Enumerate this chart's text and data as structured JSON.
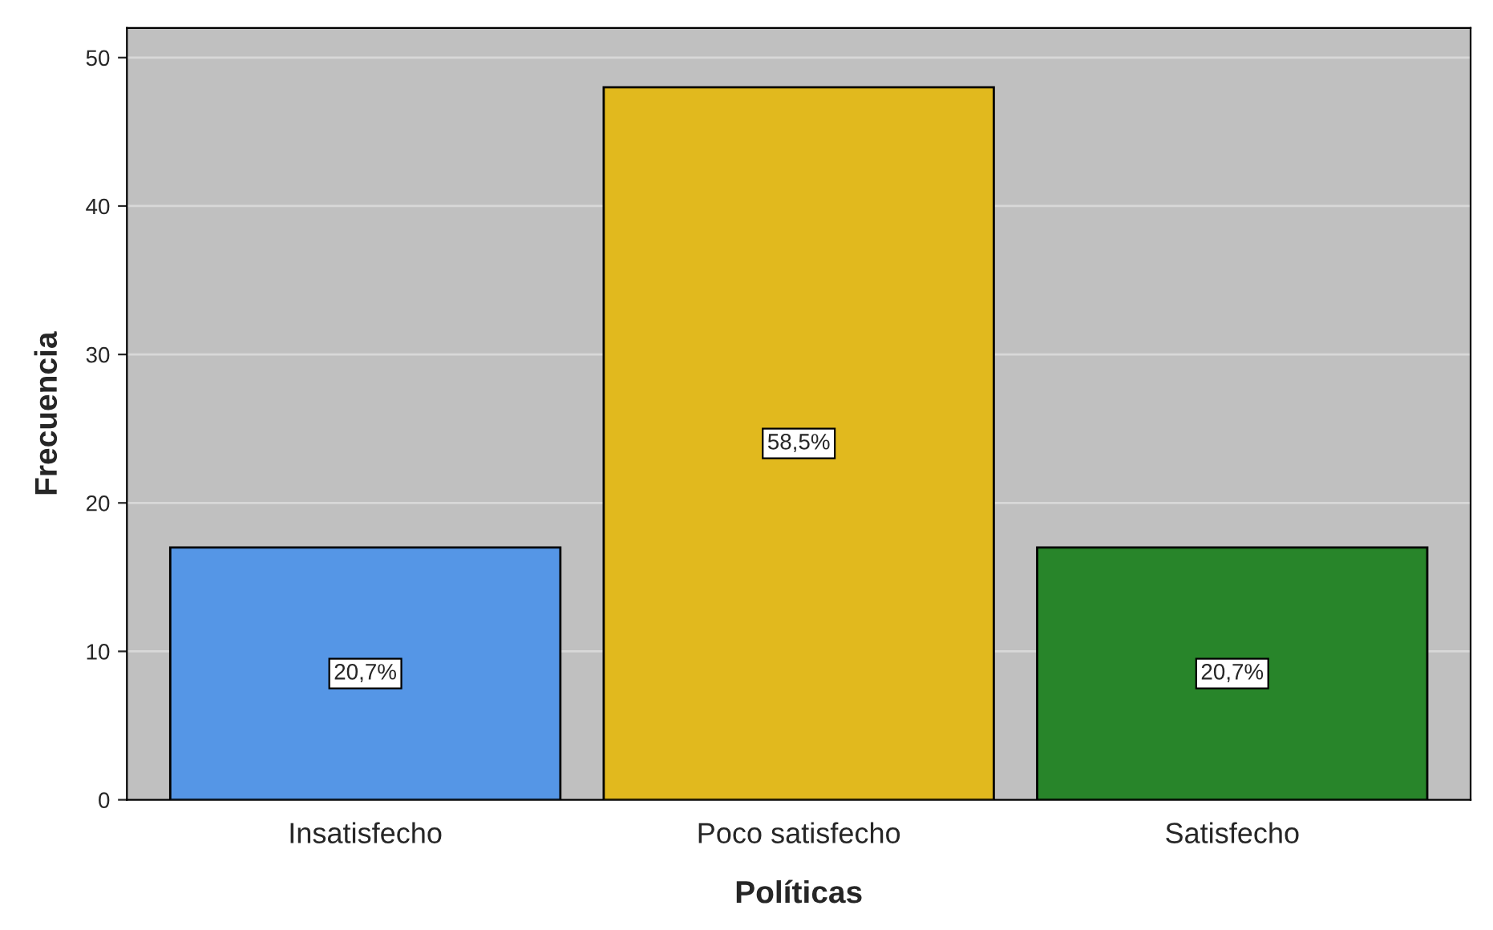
{
  "chart_data": {
    "type": "bar",
    "xlabel": "Políticas",
    "ylabel": "Frecuencia",
    "categories": [
      "Insatisfecho",
      "Poco satisfecho",
      "Satisfecho"
    ],
    "values": [
      17,
      48,
      17
    ],
    "colors": [
      "#5596e6",
      "#e1b91e",
      "#28852a"
    ],
    "annotations": [
      "20,7%",
      "58,5%",
      "20,7%"
    ],
    "ylim": [
      0,
      52
    ],
    "yticks": [
      0,
      10,
      20,
      30,
      40,
      50
    ],
    "grid": "y"
  }
}
